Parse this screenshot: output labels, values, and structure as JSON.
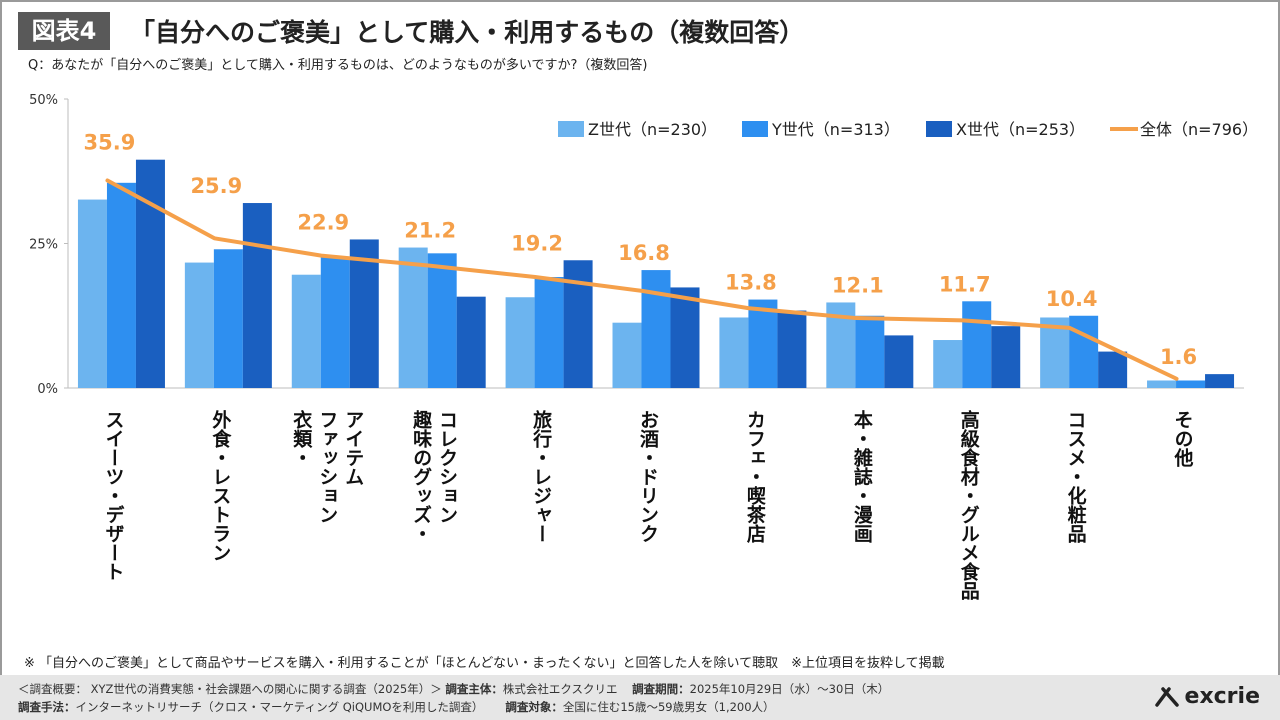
{
  "header": {
    "figure_label": "図表4",
    "title": "「自分へのご褒美」として購入・利用するもの（複数回答）",
    "question": "Q：あなたが「自分へのご褒美」として購入・利用するものは、どのようなものが多いですか?（複数回答)"
  },
  "chart_data": {
    "type": "bar",
    "categories": [
      "スイーツ・デザート",
      "外食・レストラン",
      "衣類・ファッションアイテム",
      "趣味のグッズ・コレクション",
      "旅行・レジャー",
      "お酒・ドリンク",
      "カフェ・喫茶店",
      "本・雑誌・漫画",
      "高級食材・グルメ食品",
      "コスメ・化粧品",
      "その他"
    ],
    "category_label_columns": [
      [
        "スイーツ・デザート"
      ],
      [
        "外食・レストラン"
      ],
      [
        "衣類・",
        "ファッション",
        "アイテム"
      ],
      [
        "趣味のグッズ・",
        "コレクション"
      ],
      [
        "旅行・レジャー"
      ],
      [
        "お酒・ドリンク"
      ],
      [
        "カフェ・喫茶店"
      ],
      [
        "本・雑誌・漫画"
      ],
      [
        "高級食材・グルメ食品"
      ],
      [
        "コスメ・化粧品"
      ],
      [
        "その他"
      ]
    ],
    "series": [
      {
        "name": "Z世代（n=230）",
        "color": "#6cb4ef",
        "values": [
          32.6,
          21.7,
          19.6,
          24.3,
          15.7,
          11.3,
          12.2,
          14.8,
          8.3,
          12.2,
          1.3
        ]
      },
      {
        "name": "Y世代（n=313）",
        "color": "#2e8ff0",
        "values": [
          35.5,
          24.0,
          22.7,
          23.3,
          19.2,
          20.4,
          15.3,
          12.5,
          15.0,
          12.5,
          1.3
        ]
      },
      {
        "name": "X世代（n=253）",
        "color": "#1a5fc0",
        "values": [
          39.5,
          32.0,
          25.7,
          15.8,
          22.1,
          17.4,
          13.4,
          9.1,
          10.7,
          6.3,
          2.4
        ]
      }
    ],
    "total": {
      "name": "全体（n=796）",
      "color": "#f5a04a",
      "values": [
        35.9,
        25.9,
        22.9,
        21.2,
        19.2,
        16.8,
        13.8,
        12.1,
        11.7,
        10.4,
        1.6
      ]
    },
    "y_ticks": [
      "0%",
      "25%",
      "50%"
    ],
    "y_tick_values": [
      0,
      25,
      50
    ],
    "ylim": [
      0,
      50
    ],
    "legend_position": "top-right",
    "grid": false
  },
  "footer": {
    "note": "※ 「自分へのご褒美」として商品やサービスを購入・利用することが「ほとんどない・まったくない」と回答した人を除いて聴取　※上位項目を抜粋して掲載",
    "line1_prefix": "＜調査概要： XYZ世代の消費実態・社会課題への関心に関する調査（2025年）＞",
    "line1_sponsor_label": "調査主体：",
    "line1_sponsor": "株式会社エクスクリエ",
    "line1_period_label": "調査期間：",
    "line1_period": "2025年10月29日（水）〜30日（木）",
    "line2_method_label": "調査手法：",
    "line2_method": "インターネットリサーチ（クロス・マーケティング QiQUMOを利用した調査）",
    "line2_target_label": "調査対象：",
    "line2_target": "全国に住む15歳〜59歳男女（1,200人）",
    "logo_text": "excrie"
  }
}
